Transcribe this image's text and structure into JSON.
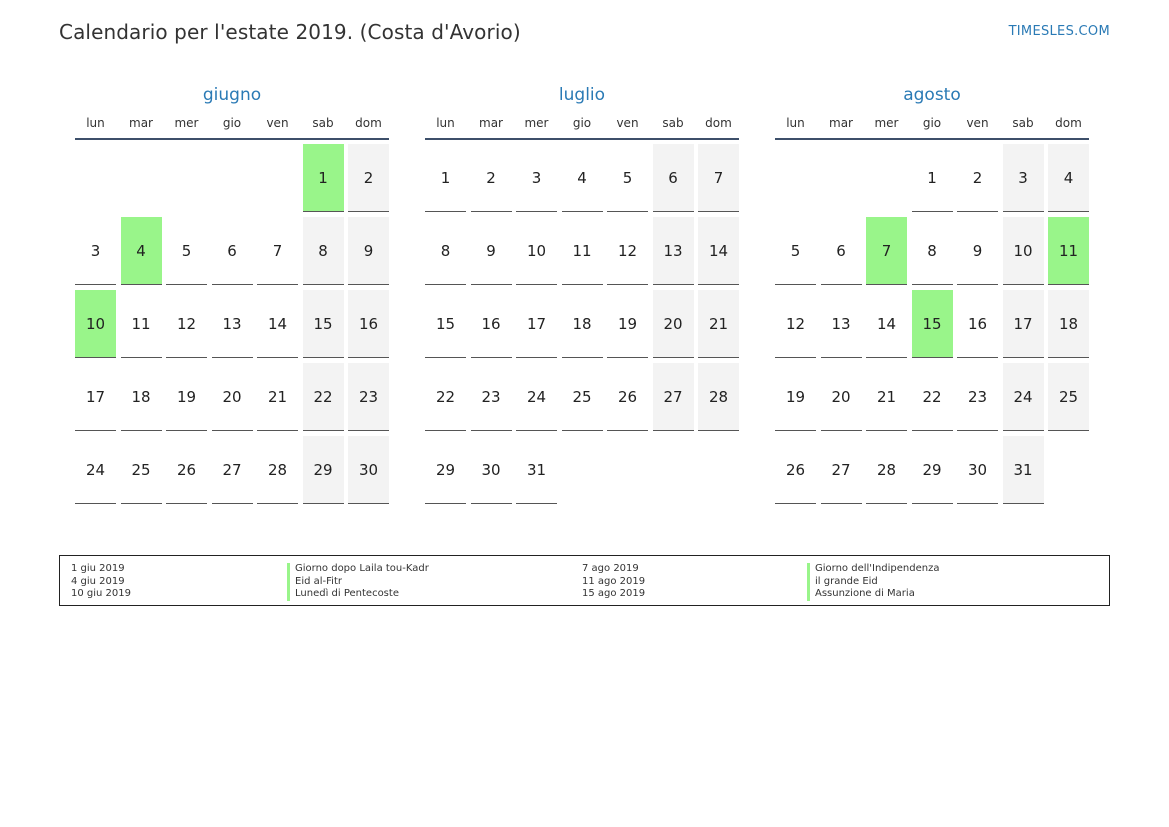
{
  "header": {
    "title": "Calendario per l'estate 2019. (Costa d'Avorio)",
    "site": "TIMESLES.COM"
  },
  "colors": {
    "accent": "#2a7ab5",
    "holiday": "#99f58a",
    "weekend": "#f3f3f3"
  },
  "weekdays": [
    "lun",
    "mar",
    "mer",
    "gio",
    "ven",
    "sab",
    "dom"
  ],
  "months": [
    {
      "name": "giugno",
      "offset": 5,
      "days": 30,
      "holidays": [
        1,
        4,
        10
      ]
    },
    {
      "name": "luglio",
      "offset": 0,
      "days": 31,
      "holidays": []
    },
    {
      "name": "agosto",
      "offset": 3,
      "days": 31,
      "holidays": [
        7,
        11,
        15
      ]
    }
  ],
  "legend": [
    {
      "date": "1 giu 2019",
      "name": "Giorno dopo Laila tou-Kadr"
    },
    {
      "date": "4 giu 2019",
      "name": "Eid al-Fitr"
    },
    {
      "date": "10 giu 2019",
      "name": "Lunedì di Pentecoste"
    },
    {
      "date": "7 ago 2019",
      "name": "Giorno dell'Indipendenza"
    },
    {
      "date": "11 ago 2019",
      "name": "il grande Eid"
    },
    {
      "date": "15 ago 2019",
      "name": "Assunzione di Maria"
    }
  ]
}
